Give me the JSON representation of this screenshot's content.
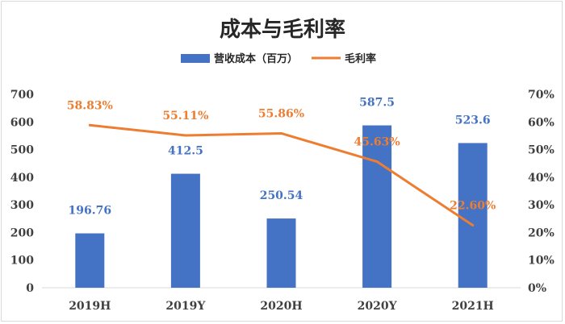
{
  "chart_data": {
    "type": "bar+line",
    "title": "成本与毛利率",
    "categories": [
      "2019H",
      "2019Y",
      "2020H",
      "2020Y",
      "2021H"
    ],
    "series": [
      {
        "name": "营收成本（百万）",
        "type": "bar",
        "axis": "left",
        "values": [
          196.76,
          412.5,
          250.54,
          587.5,
          523.6
        ],
        "labels": [
          "196.76",
          "412.5",
          "250.54",
          "587.5",
          "523.6"
        ],
        "color": "#4472c4"
      },
      {
        "name": "毛利率",
        "type": "line",
        "axis": "right",
        "values": [
          58.83,
          55.11,
          55.86,
          45.63,
          22.6
        ],
        "labels": [
          "58.83%",
          "55.11%",
          "55.86%",
          "45.63%",
          "22.60%"
        ],
        "color": "#ed7d31"
      }
    ],
    "y_left": {
      "min": 0,
      "max": 700,
      "step": 100,
      "ticks": [
        "0",
        "100",
        "200",
        "300",
        "400",
        "500",
        "600",
        "700"
      ]
    },
    "y_right": {
      "min": 0,
      "max": 70,
      "step": 10,
      "ticks": [
        "0%",
        "10%",
        "20%",
        "30%",
        "40%",
        "50%",
        "60%",
        "70%"
      ]
    },
    "legend_position": "top",
    "grid": false
  }
}
